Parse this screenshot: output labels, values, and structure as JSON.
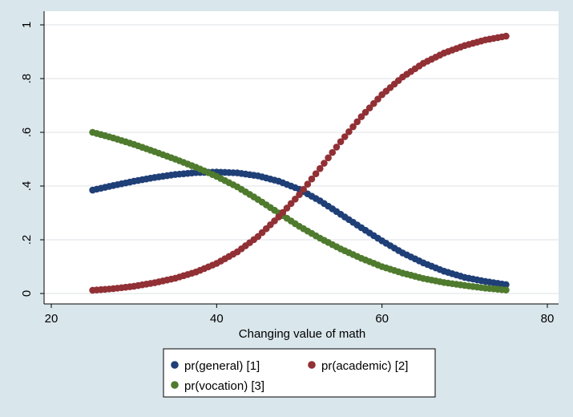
{
  "chart_data": {
    "type": "scatter",
    "title": "",
    "xlabel": "Changing value of math",
    "ylabel": "",
    "xlim": [
      20,
      80
    ],
    "ylim": [
      0,
      1
    ],
    "x_ticks": [
      20,
      40,
      60,
      80
    ],
    "y_ticks": [
      0,
      0.2,
      0.4,
      0.6,
      0.8,
      1
    ],
    "y_tick_labels": [
      "0",
      ".2",
      ".4",
      ".6",
      ".8",
      "1"
    ],
    "grid": "horizontal",
    "legend_position": "bottom",
    "x_range": [
      25,
      75
    ],
    "x_step": 0.5,
    "series": [
      {
        "name": "pr(general) [1]",
        "color": "#1f3f77",
        "x": [
          25,
          27.5,
          30,
          32.5,
          35,
          37.5,
          40,
          42.5,
          45,
          47.5,
          50,
          52.5,
          55,
          57.5,
          60,
          62.5,
          65,
          67.5,
          70,
          72.5,
          75
        ],
        "values": [
          0.385,
          0.402,
          0.418,
          0.432,
          0.443,
          0.45,
          0.452,
          0.449,
          0.438,
          0.418,
          0.388,
          0.345,
          0.295,
          0.245,
          0.196,
          0.151,
          0.114,
          0.083,
          0.06,
          0.045,
          0.033
        ]
      },
      {
        "name": "pr(academic) [2]",
        "color": "#913035",
        "x": [
          25,
          27.5,
          30,
          32.5,
          35,
          37.5,
          40,
          42.5,
          45,
          47.5,
          50,
          52.5,
          55,
          57.5,
          60,
          62.5,
          65,
          67.5,
          70,
          72.5,
          75
        ],
        "values": [
          0.012,
          0.018,
          0.027,
          0.04,
          0.057,
          0.08,
          0.112,
          0.155,
          0.212,
          0.285,
          0.368,
          0.465,
          0.565,
          0.658,
          0.74,
          0.806,
          0.857,
          0.895,
          0.923,
          0.944,
          0.958
        ]
      },
      {
        "name": "pr(vocation) [3]",
        "color": "#4f7b2e",
        "x": [
          25,
          27.5,
          30,
          32.5,
          35,
          37.5,
          40,
          42.5,
          45,
          47.5,
          50,
          52.5,
          55,
          57.5,
          60,
          62.5,
          65,
          67.5,
          70,
          72.5,
          75
        ],
        "values": [
          0.6,
          0.579,
          0.555,
          0.528,
          0.5,
          0.47,
          0.436,
          0.397,
          0.35,
          0.3,
          0.25,
          0.206,
          0.166,
          0.131,
          0.1,
          0.076,
          0.056,
          0.041,
          0.03,
          0.02,
          0.013
        ]
      }
    ]
  }
}
